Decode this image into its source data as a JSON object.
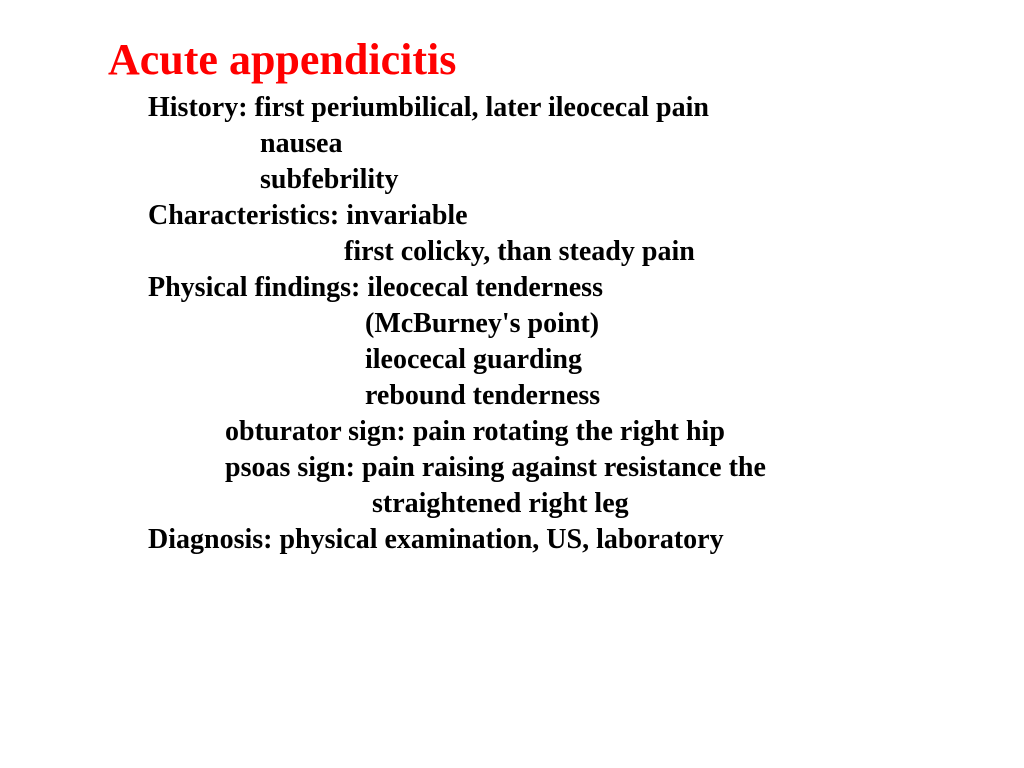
{
  "slide": {
    "title": "Acute appendicitis",
    "title_color": "#ff0000",
    "title_fontsize": "44px",
    "body_fontsize": "28px",
    "body_color": "#000000",
    "line_height": "36px",
    "bullet_glyph": "",
    "bullets": [
      {
        "lead": "History: first periumbilical, later ileocecal pain",
        "cont": [
          "                nausea",
          "                subfebrility"
        ]
      },
      {
        "lead": "Characteristics: invariable",
        "cont": [
          "                            first colicky, than steady pain"
        ]
      },
      {
        "lead": "Physical findings: ileocecal tenderness",
        "cont": [
          "                               (McBurney's point)",
          "                               ileocecal guarding",
          "                               rebound tenderness",
          "           obturator sign: pain rotating the right hip",
          "           psoas sign: pain raising against resistance the",
          "                                straightened right leg"
        ]
      },
      {
        "lead": "Diagnosis: physical examination, US, laboratory",
        "cont": []
      }
    ]
  }
}
